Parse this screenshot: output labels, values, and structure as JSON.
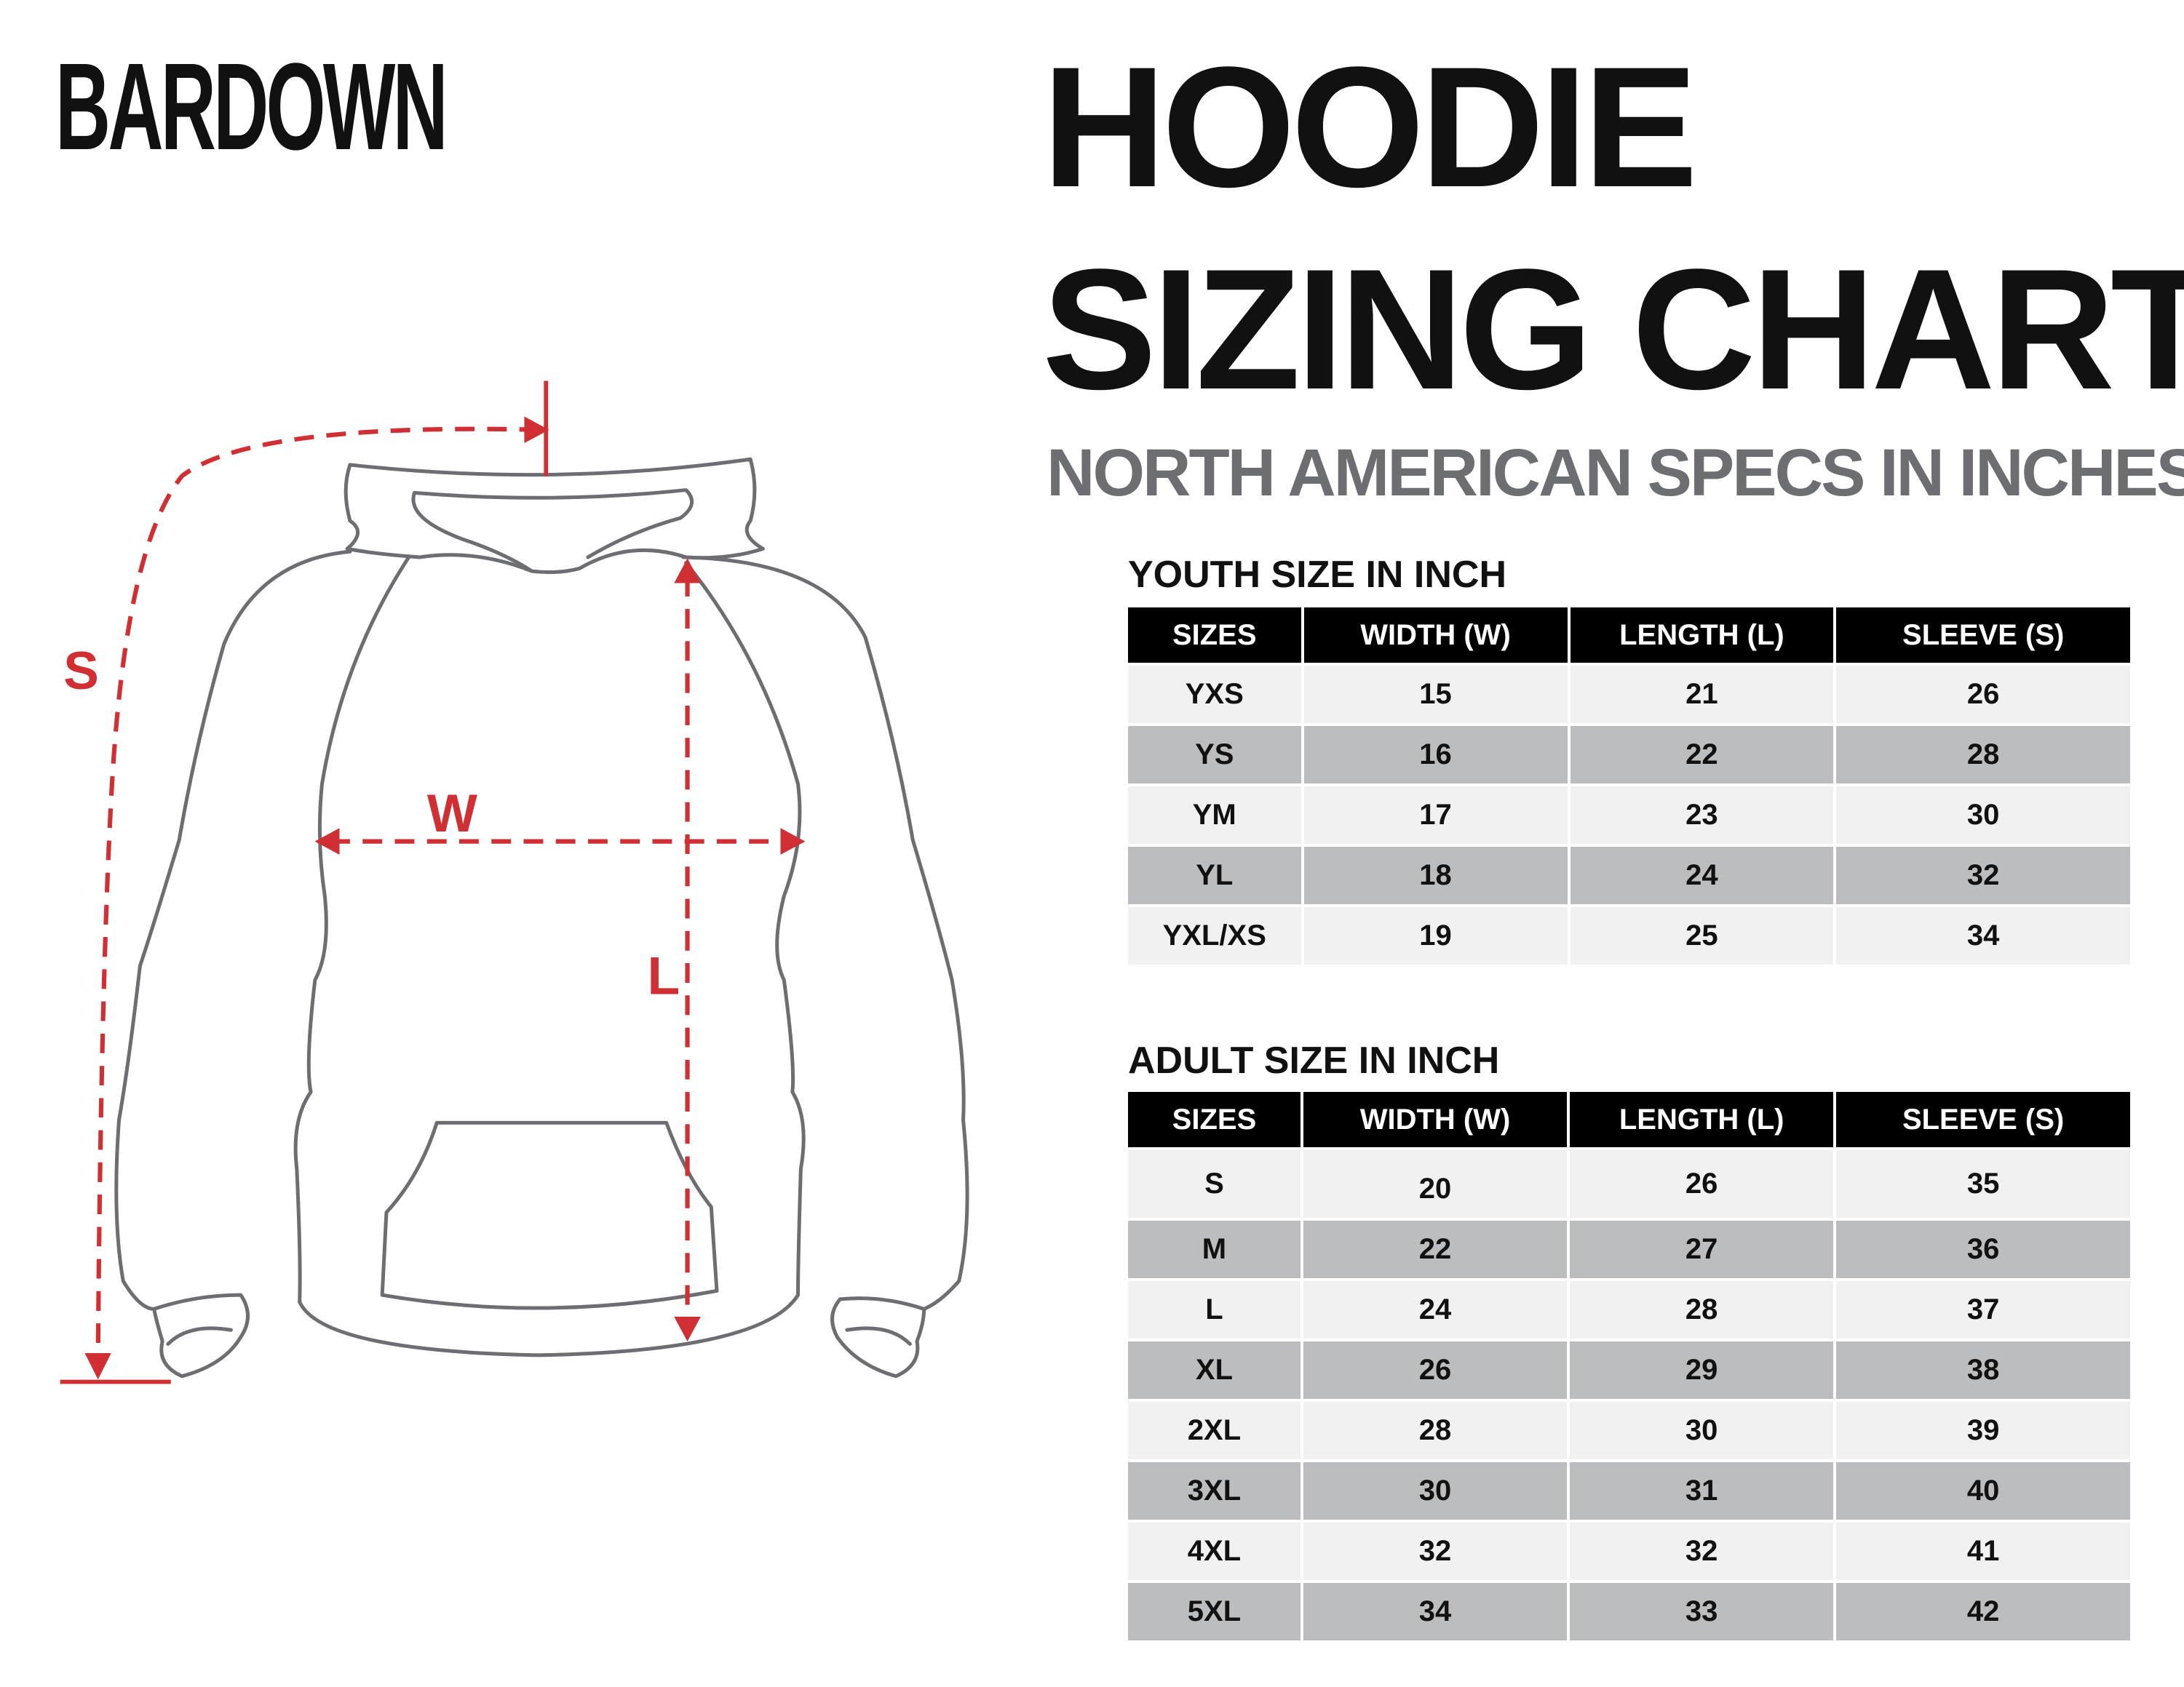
{
  "brand": {
    "logo_text": "BARDOWN"
  },
  "header": {
    "title_line1": "HOODIE",
    "title_line2": "SIZING CHART",
    "subtitle": "NORTH AMERICAN SPECS IN INCHES"
  },
  "diagram": {
    "labels": {
      "sleeve": "S",
      "width": "W",
      "length": "L"
    },
    "measure_color": "#d02f33",
    "outline_color": "#6d6e71"
  },
  "youth": {
    "title": "YOUTH SIZE IN INCH",
    "columns": [
      "SIZES",
      "WIDTH (W)",
      "LENGTH (L)",
      "SLEEVE (S)"
    ],
    "rows": [
      [
        "YXS",
        "15",
        "21",
        "26"
      ],
      [
        "YS",
        "16",
        "22",
        "28"
      ],
      [
        "YM",
        "17",
        "23",
        "30"
      ],
      [
        "YL",
        "18",
        "24",
        "32"
      ],
      [
        "YXL/XS",
        "19",
        "25",
        "34"
      ]
    ]
  },
  "adult": {
    "title": "ADULT SIZE IN INCH",
    "columns": [
      "SIZES",
      "WIDTH (W)",
      "LENGTH (L)",
      "SLEEVE (S)"
    ],
    "rows": [
      [
        "S",
        "20",
        "26",
        "35"
      ],
      [
        "M",
        "22",
        "27",
        "36"
      ],
      [
        "L",
        "24",
        "28",
        "37"
      ],
      [
        "XL",
        "26",
        "29",
        "38"
      ],
      [
        "2XL",
        "28",
        "30",
        "39"
      ],
      [
        "3XL",
        "30",
        "31",
        "40"
      ],
      [
        "4XL",
        "32",
        "32",
        "41"
      ],
      [
        "5XL",
        "34",
        "33",
        "42"
      ]
    ]
  },
  "colors": {
    "header_bg": "#000000",
    "row_light": "#f1f1f1",
    "row_dark": "#bcbdbf",
    "subtitle": "#6d6e71"
  }
}
